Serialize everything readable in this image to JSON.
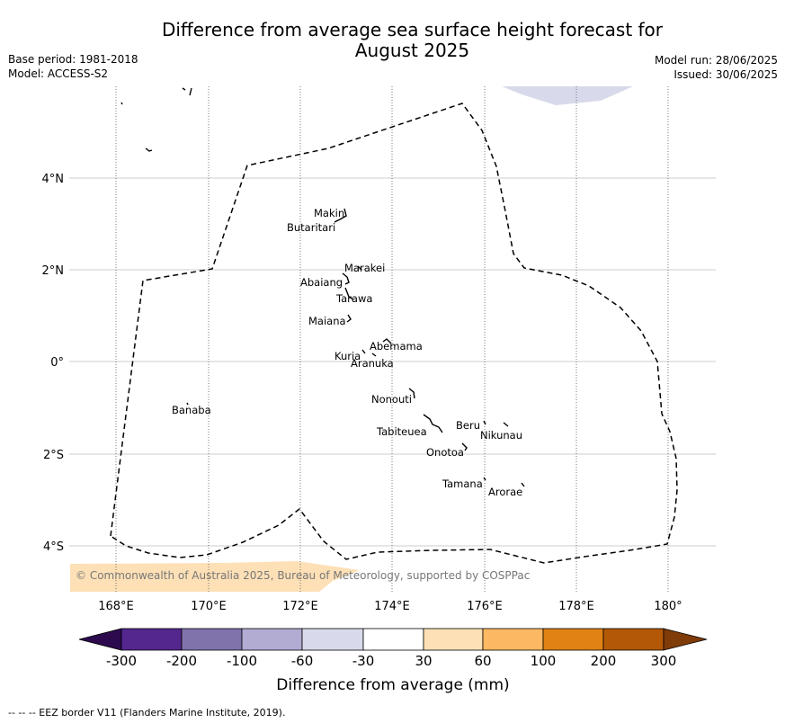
{
  "title": "Difference from average sea surface height forecast for August 2025",
  "title_line1": "Difference from average sea surface height forecast for",
  "title_line2": "August 2025",
  "base_period": "Base period: 1981-2018",
  "model": "Model: ACCESS-S2",
  "model_run": "Model run: 28/06/2025",
  "issued": "Issued: 30/06/2025",
  "copyright": "© Commonwealth of Australia 2025, Bureau of Meteorology, supported by COSPPac",
  "footnote": "-- -- -- EEZ border V11 (Flanders Marine Institute, 2019).",
  "map": {
    "lon_ticks": [
      "168°E",
      "170°E",
      "172°E",
      "174°E",
      "176°E",
      "178°E",
      "180°"
    ],
    "lat_ticks": [
      "4°N",
      "2°N",
      "0°",
      "2°S",
      "4°S"
    ],
    "islands": [
      {
        "name": "Makin"
      },
      {
        "name": "Butaritari"
      },
      {
        "name": "Marakei"
      },
      {
        "name": "Abaiang"
      },
      {
        "name": "Tarawa"
      },
      {
        "name": "Maiana"
      },
      {
        "name": "Abemama"
      },
      {
        "name": "Kuria"
      },
      {
        "name": "Aranuka"
      },
      {
        "name": "Nonouti"
      },
      {
        "name": "Banaba"
      },
      {
        "name": "Beru"
      },
      {
        "name": "Tabiteuea"
      },
      {
        "name": "Nikunau"
      },
      {
        "name": "Onotoa"
      },
      {
        "name": "Tamana"
      },
      {
        "name": "Arorae"
      }
    ]
  },
  "colorbar": {
    "label": "Difference from average (mm)",
    "ticks": [
      "-300",
      "-200",
      "-100",
      "-60",
      "-30",
      "30",
      "60",
      "100",
      "200",
      "300"
    ],
    "colors": {
      "below_min": "#2d0a4e",
      "c1": "#54278f",
      "c2": "#8073ac",
      "c3": "#b2abd2",
      "c4": "#d8daeb",
      "c5": "#ffffff",
      "c6": "#fee0b6",
      "c7": "#fdb863",
      "c8": "#e08214",
      "c9": "#b35806",
      "above_max": "#7f3b08"
    }
  },
  "field_colors": {
    "light_purple_patch": "#d8daeb",
    "light_orange_patch": "#fee0b6"
  }
}
